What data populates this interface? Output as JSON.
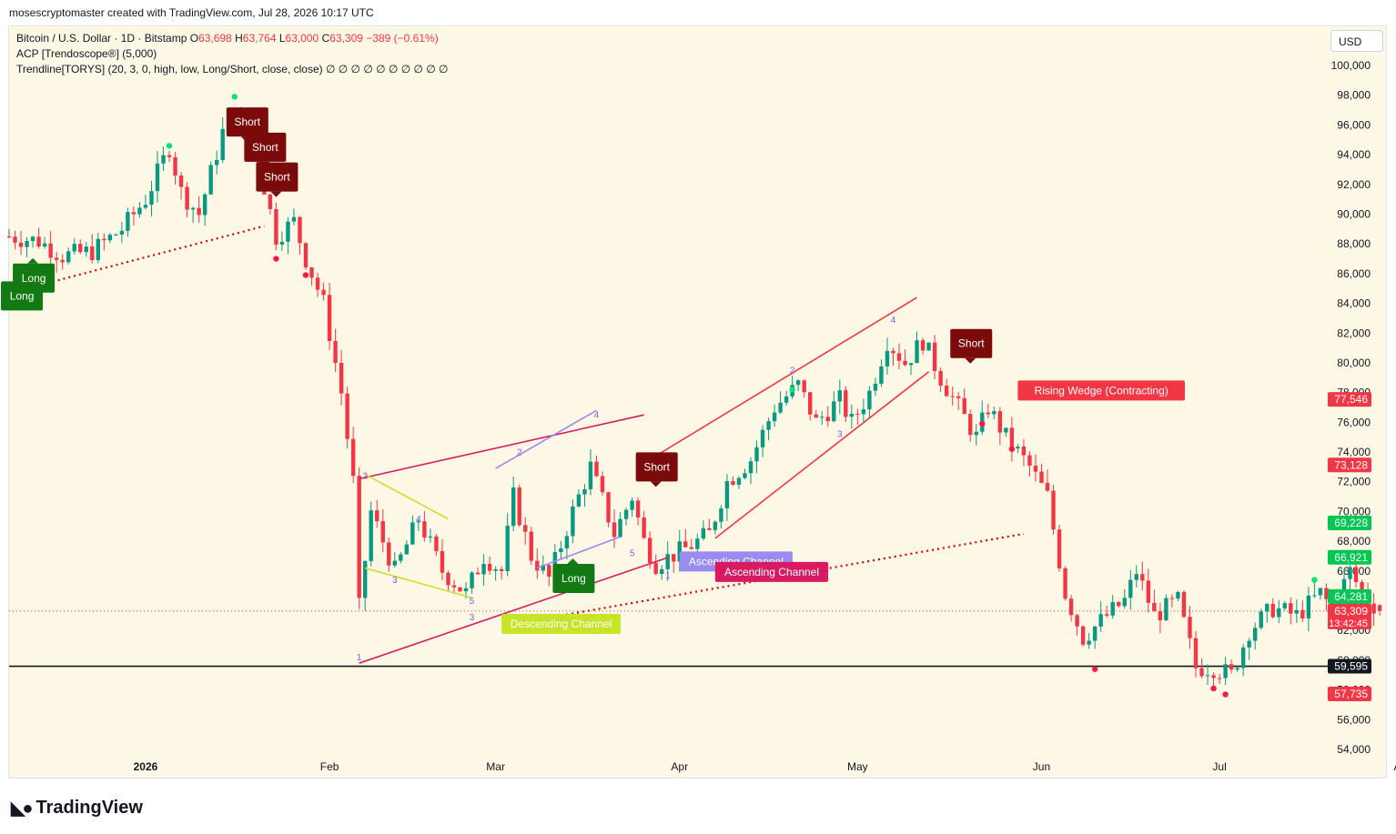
{
  "header": {
    "attribution": "mosescryptomaster created with TradingView.com, Jul 28, 2026 10:17 UTC"
  },
  "legend": {
    "symbol": "Bitcoin / U.S. Dollar · 1D · Bitstamp",
    "open_label": "O",
    "open": "63,698",
    "high_label": "H",
    "high": "63,764",
    "low_label": "L",
    "low": "63,000",
    "close_label": "C",
    "close": "63,309",
    "change": "−389 (−0.61%)",
    "indicator1": "ACP [Trendoscope®] (5,000)",
    "indicator2": "Trendline[TORYS] (20, 3, 0, high, low, Long/Short, close, close)",
    "indicator2_values": "∅ ∅ ∅ ∅ ∅ ∅ ∅ ∅ ∅ ∅"
  },
  "currency_button": "USD",
  "footer_brand": "TradingView",
  "colors": {
    "up": "#089981",
    "down": "#f23645",
    "background": "#fdf7e6",
    "short_label": "#7b0a0a",
    "long_label": "#137a13",
    "rising_wedge": "#f23645",
    "ascending_channel_1": "#9a8bf0",
    "ascending_channel_2": "#d81b60",
    "descending_channel": "#c6e52a"
  },
  "chart_data": {
    "type": "candlestick",
    "timeframe": "1D",
    "ylim": [
      53000,
      101500
    ],
    "y_ticks": [
      54000,
      56000,
      58000,
      60000,
      62000,
      64000,
      66000,
      68000,
      70000,
      72000,
      74000,
      76000,
      78000,
      80000,
      82000,
      84000,
      86000,
      88000,
      90000,
      92000,
      94000,
      96000,
      98000,
      100000
    ],
    "x_ticks": [
      {
        "label": "2026",
        "date": "2026-01-01"
      },
      {
        "label": "Feb",
        "date": "2026-02-01"
      },
      {
        "label": "Mar",
        "date": "2026-03-01"
      },
      {
        "label": "Apr",
        "date": "2026-04-01"
      },
      {
        "label": "May",
        "date": "2026-05-01"
      },
      {
        "label": "Jun",
        "date": "2026-06-01"
      },
      {
        "label": "Jul",
        "date": "2026-07-01"
      },
      {
        "label": "Aug",
        "date": "2026-08-01"
      }
    ],
    "first_date": "2025-12-09",
    "last_date": "2026-07-28",
    "close_anchors": [
      [
        "2025-12-09",
        88500
      ],
      [
        "2025-12-14",
        88200
      ],
      [
        "2025-12-18",
        87200
      ],
      [
        "2025-12-23",
        87500
      ],
      [
        "2025-12-28",
        89000
      ],
      [
        "2026-01-01",
        91000
      ],
      [
        "2026-01-05",
        94500
      ],
      [
        "2026-01-07",
        91500
      ],
      [
        "2026-01-10",
        90000
      ],
      [
        "2026-01-14",
        95500
      ],
      [
        "2026-01-16",
        97000
      ],
      [
        "2026-01-18",
        95000
      ],
      [
        "2026-01-20",
        93500
      ],
      [
        "2026-01-23",
        88500
      ],
      [
        "2026-01-26",
        89500
      ],
      [
        "2026-01-28",
        87000
      ],
      [
        "2026-01-31",
        84000
      ],
      [
        "2026-02-03",
        78000
      ],
      [
        "2026-02-05",
        72000
      ],
      [
        "2026-02-06",
        63500
      ],
      [
        "2026-02-08",
        70000
      ],
      [
        "2026-02-12",
        66000
      ],
      [
        "2026-02-16",
        69500
      ],
      [
        "2026-02-20",
        66000
      ],
      [
        "2026-02-24",
        64500
      ],
      [
        "2026-02-27",
        67000
      ],
      [
        "2026-03-02",
        66000
      ],
      [
        "2026-03-04",
        71000
      ],
      [
        "2026-03-07",
        67000
      ],
      [
        "2026-03-10",
        65500
      ],
      [
        "2026-03-14",
        70000
      ],
      [
        "2026-03-17",
        73000
      ],
      [
        "2026-03-21",
        68500
      ],
      [
        "2026-03-24",
        71000
      ],
      [
        "2026-03-26",
        68000
      ],
      [
        "2026-03-28",
        66500
      ],
      [
        "2026-04-02",
        67500
      ],
      [
        "2026-04-06",
        68500
      ],
      [
        "2026-04-09",
        72000
      ],
      [
        "2026-04-13",
        73500
      ],
      [
        "2026-04-17",
        77000
      ],
      [
        "2026-04-21",
        78500
      ],
      [
        "2026-04-24",
        76000
      ],
      [
        "2026-04-28",
        77500
      ],
      [
        "2026-04-30",
        76000
      ],
      [
        "2026-05-03",
        78000
      ],
      [
        "2026-05-06",
        81500
      ],
      [
        "2026-05-09",
        80000
      ],
      [
        "2026-05-12",
        81500
      ],
      [
        "2026-05-15",
        79000
      ],
      [
        "2026-05-18",
        77000
      ],
      [
        "2026-05-21",
        75000
      ],
      [
        "2026-05-23",
        77000
      ],
      [
        "2026-05-26",
        75000
      ],
      [
        "2026-05-30",
        73000
      ],
      [
        "2026-06-02",
        71000
      ],
      [
        "2026-06-05",
        64500
      ],
      [
        "2026-06-08",
        61500
      ],
      [
        "2026-06-12",
        63000
      ],
      [
        "2026-06-15",
        64000
      ],
      [
        "2026-06-17",
        66000
      ],
      [
        "2026-06-20",
        63000
      ],
      [
        "2026-06-24",
        64000
      ],
      [
        "2026-06-27",
        59500
      ],
      [
        "2026-06-30",
        59500
      ],
      [
        "2026-07-03",
        59000
      ],
      [
        "2026-07-06",
        62000
      ],
      [
        "2026-07-10",
        63500
      ],
      [
        "2026-07-14",
        63000
      ],
      [
        "2026-07-18",
        64500
      ],
      [
        "2026-07-20",
        63500
      ],
      [
        "2026-07-23",
        66000
      ],
      [
        "2026-07-25",
        64500
      ],
      [
        "2026-07-28",
        63309
      ]
    ],
    "price_labels": [
      {
        "text": "77,546",
        "value": 77546,
        "color": "#f23645"
      },
      {
        "text": "73,128",
        "value": 73128,
        "color": "#f23645"
      },
      {
        "text": "69,228",
        "value": 69228,
        "color": "#00c853"
      },
      {
        "text": "66,921",
        "value": 66921,
        "color": "#00c853"
      },
      {
        "text": "64,281",
        "value": 64281,
        "color": "#00c853"
      },
      {
        "text": "63,309",
        "subtext": "13:42:45",
        "value": 63309,
        "color": "#f23645"
      },
      {
        "text": "59,595",
        "value": 59595,
        "color": "#131722"
      },
      {
        "text": "57,735",
        "value": 57735,
        "color": "#f23645"
      }
    ],
    "horizontal_line": 59595,
    "signals": [
      {
        "text": "Short",
        "date": "2026-01-18",
        "price": 96200,
        "kind": "short"
      },
      {
        "text": "Short",
        "date": "2026-01-21",
        "price": 94500,
        "kind": "short"
      },
      {
        "text": "Short",
        "date": "2026-01-23",
        "price": 92500,
        "kind": "short"
      },
      {
        "text": "Long",
        "date": "2025-12-11",
        "price": 84500,
        "kind": "long"
      },
      {
        "text": "Long",
        "date": "2025-12-13",
        "price": 85700,
        "kind": "long"
      },
      {
        "text": "Short",
        "date": "2026-03-28",
        "price": 73000,
        "kind": "short"
      },
      {
        "text": "Long",
        "date": "2026-03-14",
        "price": 65500,
        "kind": "long"
      },
      {
        "text": "Short",
        "date": "2026-05-20",
        "price": 81300,
        "kind": "short"
      }
    ],
    "patterns": [
      {
        "text": "Rising Wedge (Contracting)",
        "date": "2026-05-28",
        "price": 78200,
        "color": "#f23645"
      },
      {
        "text": "Ascending Channel",
        "date": "2026-04-01",
        "price": 66700,
        "color": "#9a8bf0"
      },
      {
        "text": "Ascending Channel",
        "date": "2026-04-07",
        "price": 66000,
        "color": "#d81b60"
      },
      {
        "text": "Descending Channel",
        "date": "2026-03-02",
        "price": 62500,
        "color": "#c6e52a"
      }
    ],
    "wave_numbers": [
      {
        "text": "1",
        "date": "2026-02-06",
        "price": 60000
      },
      {
        "text": "2",
        "date": "2026-02-07",
        "price": 72200
      },
      {
        "text": "3",
        "date": "2026-02-12",
        "price": 65200
      },
      {
        "text": "4",
        "date": "2026-02-16",
        "price": 69300
      },
      {
        "text": "5",
        "date": "2026-02-25",
        "price": 63800
      },
      {
        "text": "3",
        "date": "2026-02-25",
        "price": 62700
      },
      {
        "text": "2",
        "date": "2026-03-05",
        "price": 73800
      },
      {
        "text": "3",
        "date": "2026-03-12",
        "price": 65500
      },
      {
        "text": "4",
        "date": "2026-03-18",
        "price": 76300
      },
      {
        "text": "5",
        "date": "2026-03-24",
        "price": 67000
      },
      {
        "text": "1",
        "date": "2026-03-30",
        "price": 65500
      },
      {
        "text": "2",
        "date": "2026-04-20",
        "price": 79300
      },
      {
        "text": "3",
        "date": "2026-04-28",
        "price": 75000
      },
      {
        "text": "4",
        "date": "2026-05-07",
        "price": 82700
      }
    ],
    "trendlines": [
      {
        "from": [
          "2026-02-06",
          72200
        ],
        "to": [
          "2026-03-26",
          76500
        ],
        "color": "#d81b60"
      },
      {
        "from": [
          "2026-02-06",
          59800
        ],
        "to": [
          "2026-03-30",
          66900
        ],
        "color": "#d81b60"
      },
      {
        "from": [
          "2026-03-01",
          72900
        ],
        "to": [
          "2026-03-18",
          76800
        ],
        "color": "#9a8bf0"
      },
      {
        "from": [
          "2026-03-08",
          66200
        ],
        "to": [
          "2026-03-22",
          68300
        ],
        "color": "#9a8bf0"
      },
      {
        "from": [
          "2026-02-07",
          72500
        ],
        "to": [
          "2026-02-21",
          69500
        ],
        "color": "#c6e52a"
      },
      {
        "from": [
          "2026-02-07",
          66200
        ],
        "to": [
          "2026-02-25",
          64200
        ],
        "color": "#c6e52a"
      },
      {
        "from": [
          "2026-03-27",
          73500
        ],
        "to": [
          "2026-05-11",
          84400
        ],
        "color": "#f23645"
      },
      {
        "from": [
          "2026-04-07",
          68200
        ],
        "to": [
          "2026-05-13",
          79400
        ],
        "color": "#f23645"
      }
    ],
    "dotted_trendlines": [
      {
        "from": [
          "2025-12-11",
          84900
        ],
        "to": [
          "2026-01-21",
          89200
        ],
        "color": "#d50000"
      },
      {
        "from": [
          "2026-03-12",
          63000
        ],
        "to": [
          "2026-05-29",
          68500
        ],
        "color": "#d50000"
      }
    ],
    "pivot_dots": [
      {
        "date": "2026-01-16",
        "price": 97900,
        "color": "#00e676"
      },
      {
        "date": "2026-01-05",
        "price": 94600,
        "color": "#00e676"
      },
      {
        "date": "2026-01-23",
        "price": 87000,
        "color": "#ff1744"
      },
      {
        "date": "2026-01-28",
        "price": 85900,
        "color": "#ff1744"
      },
      {
        "date": "2026-04-20",
        "price": 78200,
        "color": "#00e676"
      },
      {
        "date": "2026-05-22",
        "price": 75900,
        "color": "#ff1744"
      },
      {
        "date": "2026-05-27",
        "price": 74200,
        "color": "#ff1744"
      },
      {
        "date": "2026-06-10",
        "price": 59400,
        "color": "#ff1744"
      },
      {
        "date": "2026-06-30",
        "price": 58100,
        "color": "#ff1744"
      },
      {
        "date": "2026-07-02",
        "price": 57700,
        "color": "#ff1744"
      },
      {
        "date": "2026-07-17",
        "price": 65400,
        "color": "#00e676"
      },
      {
        "date": "2026-07-23",
        "price": 66800,
        "color": "#00e676"
      }
    ]
  }
}
